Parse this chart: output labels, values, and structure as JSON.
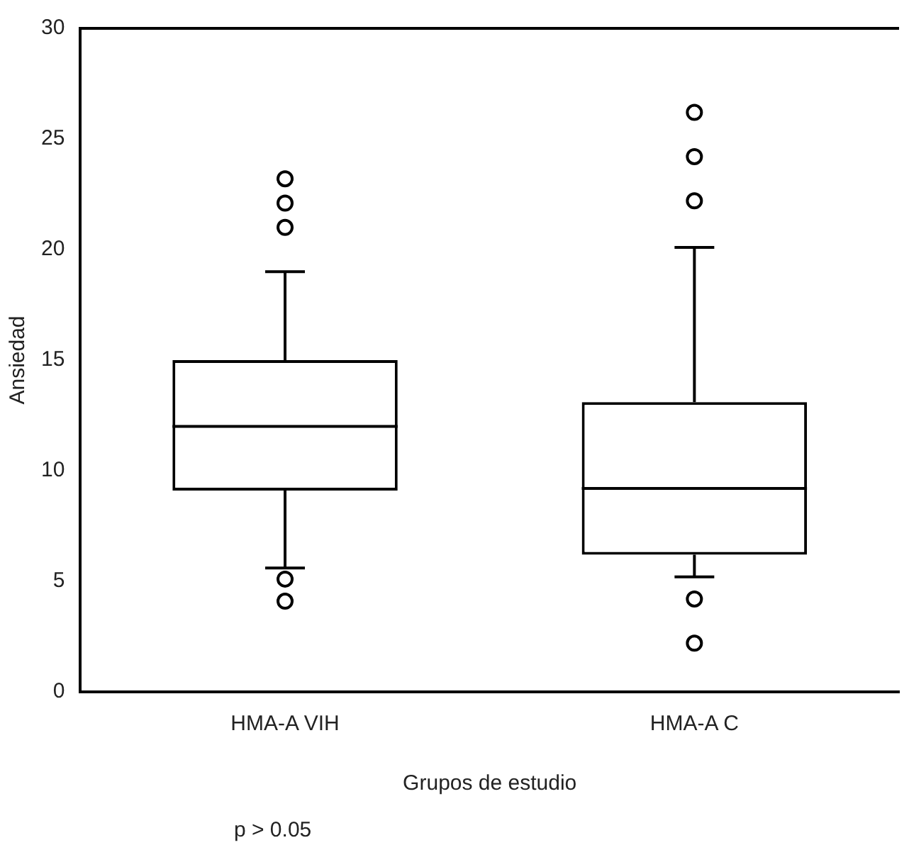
{
  "chart_data": {
    "type": "box",
    "xlabel": "Grupos de estudio",
    "ylabel": "Ansiedad",
    "categories": [
      "HMA-A VIH",
      "HMA-A C"
    ],
    "boxes": [
      {
        "low": 5.6,
        "q1": 9.1,
        "median": 12,
        "q3": 15,
        "high": 19,
        "outliers": [
          23.2,
          22.1,
          21,
          5.1,
          4.1
        ]
      },
      {
        "low": 5.2,
        "q1": 6.2,
        "median": 9.2,
        "q3": 13.1,
        "high": 20.1,
        "outliers": [
          26.2,
          24.2,
          22.2,
          4.2,
          2.2
        ]
      }
    ],
    "color": "#000000",
    "ylim": [
      0,
      30
    ],
    "yticks": [
      0,
      5,
      10,
      15,
      20,
      25,
      30
    ],
    "grid": false,
    "legend": false,
    "annotations": [
      "p > 0.05"
    ]
  }
}
